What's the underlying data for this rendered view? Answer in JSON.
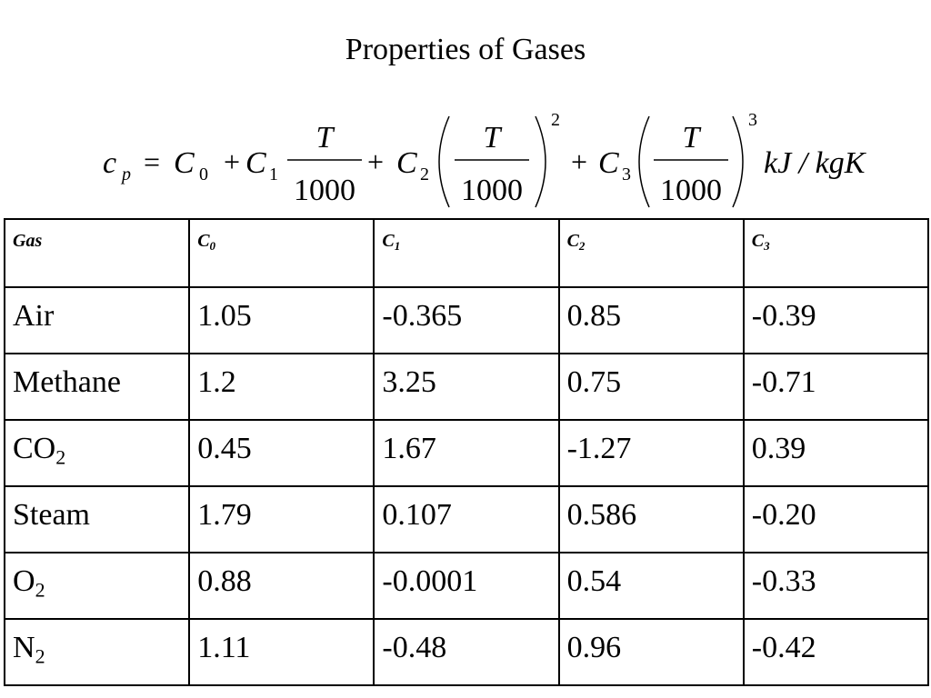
{
  "header": {
    "title": "Properties of Gases"
  },
  "formula": {
    "lhs": {
      "base": "c",
      "sub": "p"
    },
    "eq": "=",
    "plus": "+",
    "c0": {
      "base": "C",
      "sub": "0"
    },
    "c1": {
      "base": "C",
      "sub": "1"
    },
    "c2": {
      "base": "C",
      "sub": "2"
    },
    "c3": {
      "base": "C",
      "sub": "3"
    },
    "numerator": "T",
    "denominator": "1000",
    "power2": "2",
    "power3": "3",
    "unit": "kJ / kgK"
  },
  "table": {
    "columns": [
      {
        "base": "Gas"
      },
      {
        "base": "C",
        "sub": "0"
      },
      {
        "base": "C",
        "sub": "1"
      },
      {
        "base": "C",
        "sub": "2"
      },
      {
        "base": "C",
        "sub": "3"
      }
    ],
    "rows": [
      [
        {
          "base": "Air"
        },
        "1.05",
        "-0.365",
        "0.85",
        "-0.39"
      ],
      [
        {
          "base": "Methane"
        },
        "1.2",
        "3.25",
        "0.75",
        "-0.71"
      ],
      [
        {
          "base": "CO",
          "sub": "2"
        },
        "0.45",
        "1.67",
        "-1.27",
        "0.39"
      ],
      [
        {
          "base": "Steam"
        },
        "1.79",
        "0.107",
        "0.586",
        "-0.20"
      ],
      [
        {
          "base": "O",
          "sub": "2"
        },
        "0.88",
        "-0.0001",
        "0.54",
        "-0.33"
      ],
      [
        {
          "base": "N",
          "sub": "2"
        },
        "1.11",
        "-0.48",
        "0.96",
        "-0.42"
      ]
    ]
  }
}
